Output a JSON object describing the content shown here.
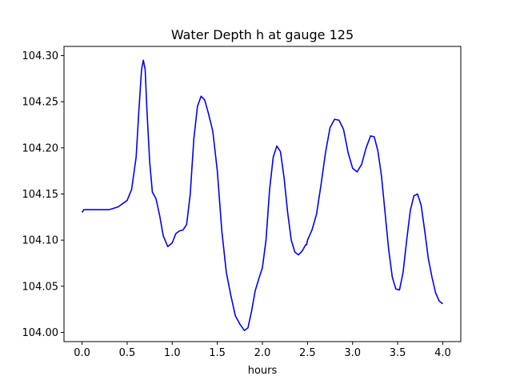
{
  "chart_data": {
    "type": "line",
    "title": "Water Depth h at gauge 125",
    "xlabel": "hours",
    "ylabel": "",
    "xlim": [
      -0.2,
      4.2
    ],
    "ylim": [
      103.99,
      104.31
    ],
    "x_ticks": [
      0.0,
      0.5,
      1.0,
      1.5,
      2.0,
      2.5,
      3.0,
      3.5,
      4.0
    ],
    "x_tick_labels": [
      "0.0",
      "0.5",
      "1.0",
      "1.5",
      "2.0",
      "2.5",
      "3.0",
      "3.5",
      "4.0"
    ],
    "y_ticks": [
      104.0,
      104.05,
      104.1,
      104.15,
      104.2,
      104.25,
      104.3
    ],
    "y_tick_labels": [
      "104.00",
      "104.05",
      "104.10",
      "104.15",
      "104.20",
      "104.25",
      "104.30"
    ],
    "grid": false,
    "legend": "none",
    "series": [
      {
        "color": "#0000ff",
        "x": [
          0.0,
          0.02,
          0.1,
          0.2,
          0.3,
          0.4,
          0.5,
          0.55,
          0.6,
          0.63,
          0.66,
          0.68,
          0.7,
          0.72,
          0.75,
          0.78,
          0.82,
          0.86,
          0.9,
          0.95,
          1.0,
          1.04,
          1.08,
          1.12,
          1.16,
          1.2,
          1.24,
          1.28,
          1.32,
          1.36,
          1.4,
          1.45,
          1.5,
          1.55,
          1.6,
          1.65,
          1.7,
          1.75,
          1.8,
          1.84,
          1.88,
          1.92,
          1.96,
          2.0,
          2.04,
          2.08,
          2.12,
          2.16,
          2.2,
          2.24,
          2.28,
          2.32,
          2.36,
          2.4,
          2.44,
          2.48,
          2.49,
          2.5,
          2.55,
          2.6,
          2.65,
          2.7,
          2.75,
          2.8,
          2.85,
          2.9,
          2.95,
          3.0,
          3.05,
          3.1,
          3.15,
          3.2,
          3.24,
          3.28,
          3.32,
          3.36,
          3.4,
          3.44,
          3.48,
          3.52,
          3.56,
          3.6,
          3.64,
          3.68,
          3.72,
          3.76,
          3.8,
          3.84,
          3.88,
          3.92,
          3.96,
          4.0
        ],
        "y": [
          104.13,
          104.133,
          104.133,
          104.133,
          104.133,
          104.136,
          104.143,
          104.155,
          104.19,
          104.24,
          104.285,
          104.295,
          104.285,
          104.24,
          104.185,
          104.152,
          104.145,
          104.127,
          104.105,
          104.093,
          104.097,
          104.107,
          104.11,
          104.111,
          104.117,
          104.15,
          104.21,
          104.245,
          104.256,
          104.252,
          104.238,
          104.218,
          104.175,
          104.11,
          104.065,
          104.04,
          104.018,
          104.009,
          104.002,
          104.005,
          104.023,
          104.045,
          104.058,
          104.07,
          104.1,
          104.155,
          104.19,
          104.202,
          104.196,
          104.168,
          104.13,
          104.1,
          104.087,
          104.084,
          104.088,
          104.095,
          104.095,
          104.1,
          104.111,
          104.128,
          104.16,
          104.195,
          104.222,
          104.231,
          104.23,
          104.22,
          104.195,
          104.178,
          104.174,
          104.182,
          104.2,
          104.213,
          104.212,
          104.197,
          104.17,
          104.13,
          104.09,
          104.06,
          104.047,
          104.046,
          104.065,
          104.1,
          104.132,
          104.148,
          104.15,
          104.138,
          104.11,
          104.08,
          104.06,
          104.043,
          104.034,
          104.031
        ]
      }
    ]
  }
}
